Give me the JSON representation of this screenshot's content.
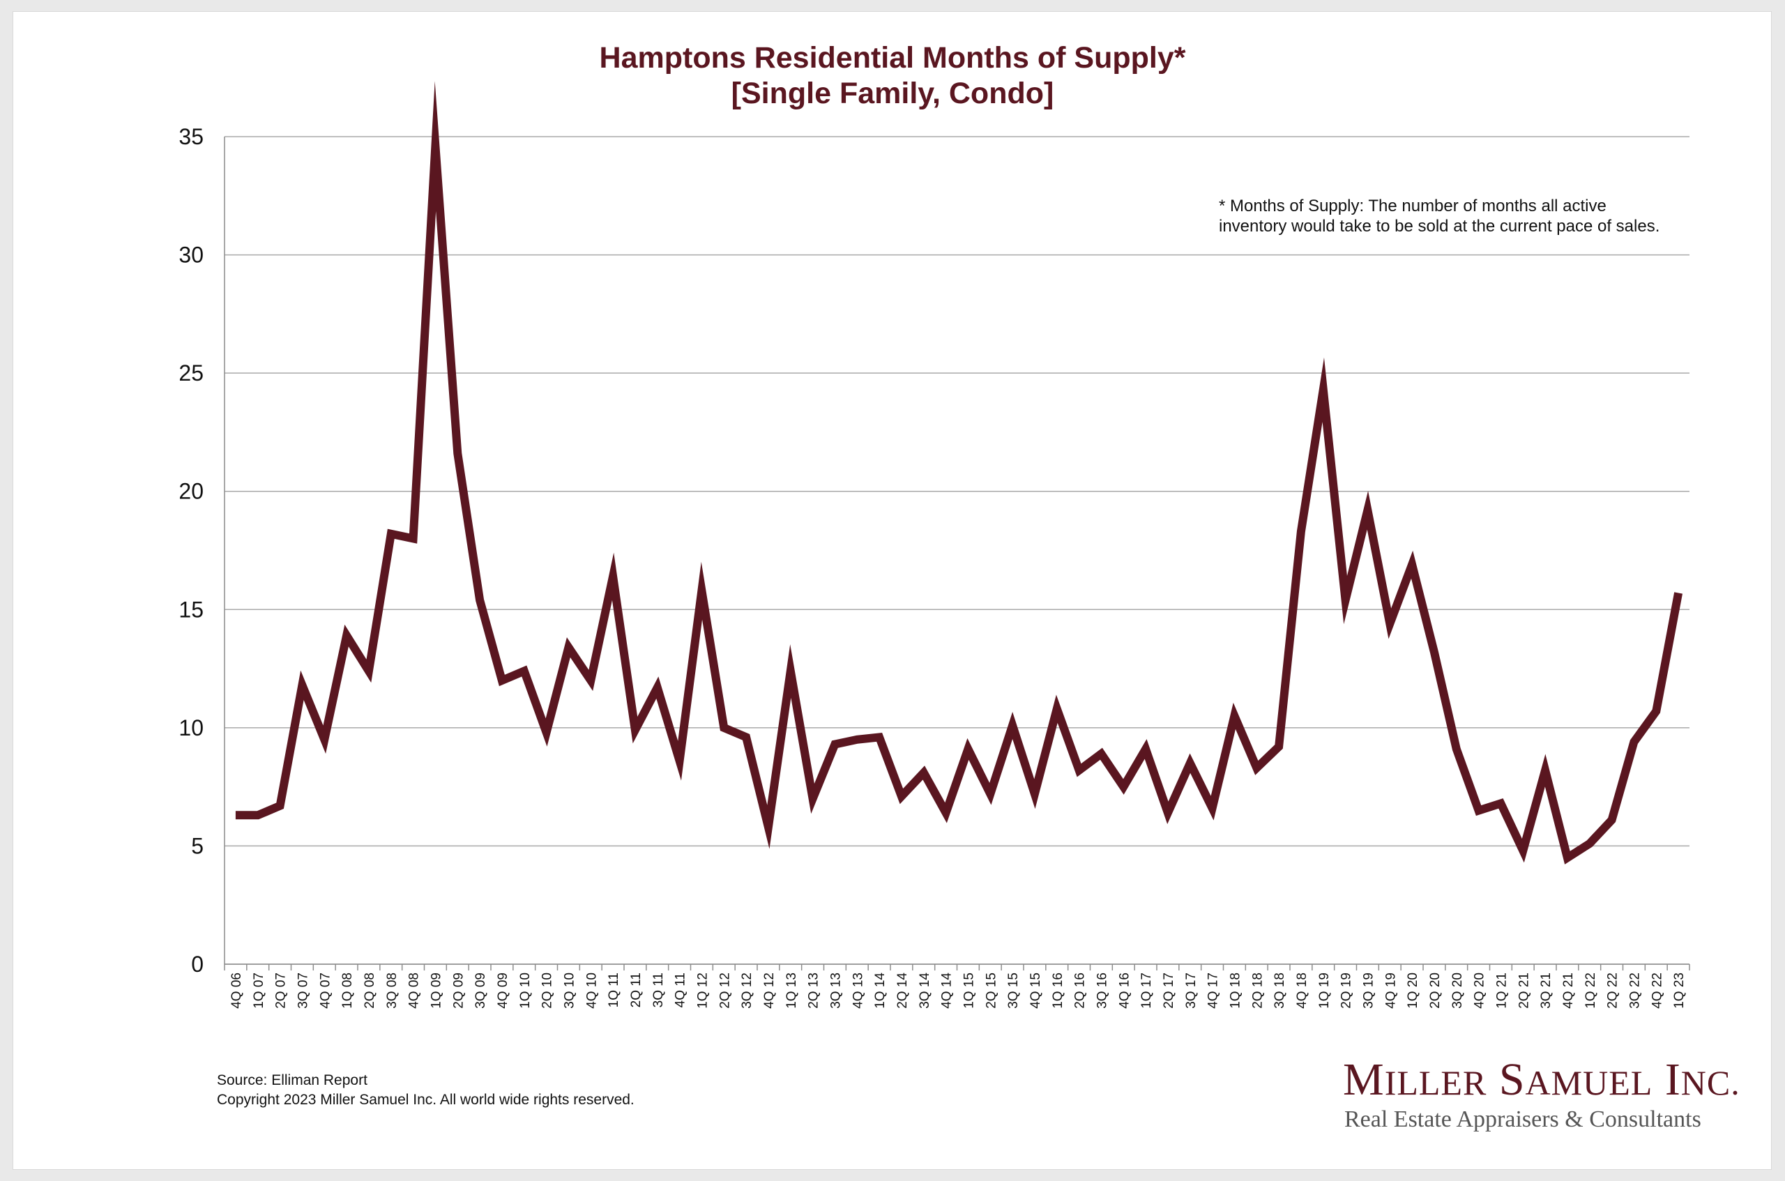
{
  "chart_data": {
    "type": "line",
    "title": "Hamptons Residential Months of Supply*",
    "subtitle": "[Single Family, Condo]",
    "xlabel": "",
    "ylabel": "",
    "ylim": [
      0,
      35
    ],
    "yticks": [
      0,
      5,
      10,
      15,
      20,
      25,
      30,
      35
    ],
    "grid": true,
    "line_color": "#5a1620",
    "categories": [
      "4Q 06",
      "1Q 07",
      "2Q 07",
      "3Q 07",
      "4Q 07",
      "1Q 08",
      "2Q 08",
      "3Q 08",
      "4Q 08",
      "1Q 09",
      "2Q 09",
      "3Q 09",
      "4Q 09",
      "1Q 10",
      "2Q 10",
      "3Q 10",
      "4Q 10",
      "1Q 11",
      "2Q 11",
      "3Q 11",
      "4Q 11",
      "1Q 12",
      "2Q 12",
      "3Q 12",
      "4Q 12",
      "1Q 13",
      "2Q 13",
      "3Q 13",
      "4Q 13",
      "1Q 14",
      "2Q 14",
      "3Q 14",
      "4Q 14",
      "1Q 15",
      "2Q 15",
      "3Q 15",
      "4Q 15",
      "1Q 16",
      "2Q 16",
      "3Q 16",
      "4Q 16",
      "1Q 17",
      "2Q 17",
      "3Q 17",
      "4Q 17",
      "1Q 18",
      "2Q 18",
      "3Q 18",
      "4Q 18",
      "1Q 19",
      "2Q 19",
      "3Q 19",
      "4Q 19",
      "1Q 20",
      "2Q 20",
      "3Q 20",
      "4Q 20",
      "1Q 21",
      "2Q 21",
      "3Q 21",
      "4Q 21",
      "1Q 22",
      "2Q 22",
      "3Q 22",
      "4Q 22",
      "1Q 23"
    ],
    "values": [
      6.3,
      6.3,
      6.7,
      11.8,
      9.5,
      13.9,
      12.4,
      18.2,
      18.0,
      34.6,
      21.6,
      15.4,
      12.0,
      12.4,
      9.8,
      13.4,
      12.0,
      16.4,
      9.9,
      11.7,
      8.6,
      15.8,
      10.0,
      9.6,
      5.8,
      12.4,
      7.0,
      9.3,
      9.5,
      9.6,
      7.1,
      8.1,
      6.4,
      9.1,
      7.2,
      10.1,
      7.2,
      10.8,
      8.2,
      8.9,
      7.5,
      9.1,
      6.4,
      8.5,
      6.6,
      10.5,
      8.3,
      9.2,
      18.3,
      24.3,
      15.4,
      19.2,
      14.4,
      16.9,
      13.2,
      9.1,
      6.5,
      6.8,
      4.8,
      8.2,
      4.5,
      5.1,
      6.1,
      9.4,
      10.7,
      15.7
    ]
  },
  "annotation": {
    "line1": "* Months of Supply: The number of months all active",
    "line2": "inventory would take to be sold at the current pace of sales."
  },
  "footer": {
    "source": "Source: Elliman Report",
    "copyright": "Copyright 2023 Miller Samuel Inc.  All world wide rights reserved."
  },
  "logo": {
    "name_m": "M",
    "name_iller": "ILLER",
    "name_s": "S",
    "name_amuel": "AMUEL",
    "name_i": "I",
    "name_nc": "NC.",
    "tagline": "Real Estate Appraisers & Consultants"
  }
}
